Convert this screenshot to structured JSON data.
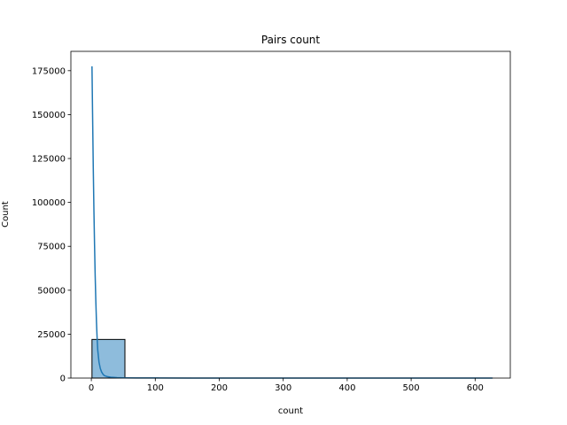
{
  "chart_data": {
    "type": "bar",
    "title": "Pairs count",
    "xlabel": "count",
    "ylabel": "Count",
    "xlim": [
      -32,
      655
    ],
    "ylim": [
      0,
      186000
    ],
    "xticks": [
      0,
      100,
      200,
      300,
      400,
      500,
      600
    ],
    "xtick_labels": [
      "0",
      "100",
      "200",
      "300",
      "400",
      "500",
      "600"
    ],
    "yticks": [
      0,
      25000,
      50000,
      75000,
      100000,
      125000,
      150000,
      175000
    ],
    "ytick_labels": [
      "0",
      "25000",
      "50000",
      "75000",
      "100000",
      "125000",
      "150000",
      "175000"
    ],
    "histogram": {
      "bins": [
        {
          "x0": 1,
          "x1": 52.5,
          "count": 22000
        },
        {
          "x0": 52.5,
          "x1": 104,
          "count": 60
        },
        {
          "x0": 104,
          "x1": 155.5,
          "count": 20
        },
        {
          "x0": 155.5,
          "x1": 207,
          "count": 10
        },
        {
          "x0": 207,
          "x1": 258.5,
          "count": 6
        },
        {
          "x0": 258.5,
          "x1": 310,
          "count": 4
        },
        {
          "x0": 310,
          "x1": 361.5,
          "count": 3
        },
        {
          "x0": 361.5,
          "x1": 413,
          "count": 2
        },
        {
          "x0": 413,
          "x1": 464.5,
          "count": 2
        },
        {
          "x0": 464.5,
          "x1": 516,
          "count": 1
        },
        {
          "x0": 516,
          "x1": 567.5,
          "count": 1
        },
        {
          "x0": 567.5,
          "x1": 627,
          "count": 1
        }
      ]
    },
    "kde": {
      "x": [
        1,
        2,
        3,
        4,
        5,
        6,
        7,
        8,
        9,
        10,
        12,
        14,
        16,
        18,
        20,
        25,
        30,
        40,
        50,
        70,
        100,
        150,
        200,
        300,
        400,
        500,
        627
      ],
      "y": [
        177500,
        148000,
        120000,
        96000,
        76000,
        58000,
        44000,
        32000,
        23000,
        16000,
        9000,
        5500,
        3500,
        2300,
        1500,
        800,
        500,
        250,
        150,
        80,
        40,
        25,
        15,
        8,
        5,
        3,
        2
      ]
    },
    "colors": {
      "bar_fill": "#8ebcdc",
      "bar_edge": "#000000",
      "line": "#1f77b4"
    }
  }
}
